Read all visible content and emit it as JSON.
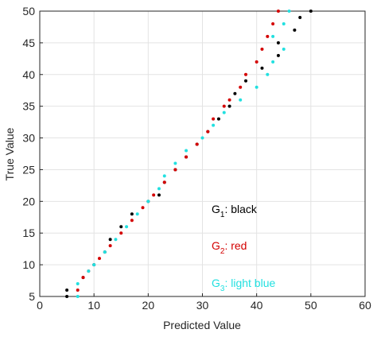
{
  "chart_data": {
    "type": "scatter",
    "x_label": "Predicted Value",
    "y_label": "True Value",
    "xlim": [
      0,
      60
    ],
    "ylim": [
      5,
      50
    ],
    "xticks": [
      0,
      10,
      20,
      30,
      40,
      50,
      60
    ],
    "yticks": [
      5,
      10,
      15,
      20,
      25,
      30,
      35,
      40,
      45,
      50
    ],
    "grid": true,
    "series": [
      {
        "color": "#000000",
        "x": [
          5,
          5,
          8,
          10,
          12,
          13,
          15,
          17,
          20,
          22,
          23,
          25,
          27,
          29,
          31,
          33,
          35,
          36,
          38,
          41,
          44,
          44,
          47,
          48,
          50
        ],
        "values": [
          5,
          6,
          8,
          10,
          12,
          14,
          16,
          18,
          20,
          21,
          23,
          25,
          27,
          29,
          31,
          33,
          35,
          37,
          39,
          41,
          43,
          45,
          47,
          49,
          50
        ]
      },
      {
        "color": "#d40000",
        "x": [
          7,
          8,
          9,
          11,
          13,
          15,
          17,
          19,
          21,
          23,
          25,
          27,
          29,
          31,
          32,
          34,
          35,
          37,
          38,
          40,
          41,
          42,
          43,
          44
        ],
        "values": [
          6,
          8,
          9,
          11,
          13,
          15,
          17,
          19,
          21,
          23,
          25,
          27,
          29,
          31,
          33,
          35,
          36,
          38,
          40,
          42,
          44,
          46,
          48,
          50
        ]
      },
      {
        "color": "#22e0e0",
        "x": [
          7,
          7,
          9,
          10,
          12,
          14,
          16,
          18,
          20,
          22,
          23,
          25,
          27,
          30,
          32,
          34,
          37,
          40,
          42,
          43,
          45,
          43,
          45,
          46
        ],
        "values": [
          5,
          7,
          9,
          10,
          12,
          14,
          16,
          18,
          20,
          22,
          24,
          26,
          28,
          30,
          32,
          34,
          36,
          38,
          40,
          42,
          44,
          46,
          48,
          50
        ]
      }
    ],
    "annotations": [
      {
        "text": "G",
        "sub": "1",
        "rest": ": black",
        "color": "#000000"
      },
      {
        "text": "G",
        "sub": "2",
        "rest": ": red",
        "color": "#d40000"
      },
      {
        "text": "G",
        "sub": "3",
        "rest": ": light blue",
        "color": "#22e0e0"
      }
    ]
  }
}
